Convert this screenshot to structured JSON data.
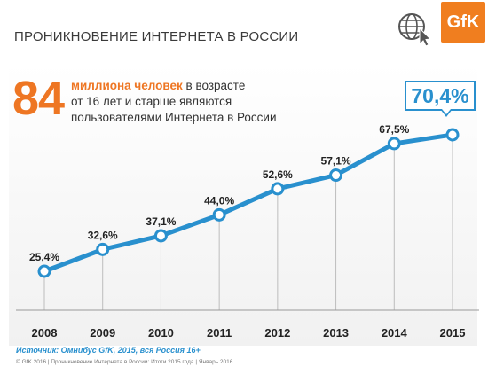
{
  "header": {
    "title": "ПРОНИКНОВЕНИЕ ИНТЕРНЕТА В РОССИИ",
    "brand": "GfK"
  },
  "headline": {
    "number": "84",
    "accent_text": "миллиона человек",
    "rest_text_1": " в возрасте",
    "line_2": "от 16 лет и старше являются",
    "line_3": "пользователями Интернета в России"
  },
  "callout": {
    "value": "70,4%"
  },
  "chart_data": {
    "type": "line",
    "x": [
      "2008",
      "2009",
      "2010",
      "2011",
      "2012",
      "2013",
      "2014",
      "2015"
    ],
    "values": [
      25.4,
      32.6,
      37.1,
      44.0,
      52.6,
      57.1,
      67.5,
      70.4
    ],
    "data_labels": [
      "25,4%",
      "32,6%",
      "37,1%",
      "44,0%",
      "52,6%",
      "57,1%",
      "67,5%",
      ""
    ],
    "ylim": [
      20,
      75
    ],
    "grid": false,
    "line_color": "#2990ce"
  },
  "source": "Источник: Омнибус GfK, 2015, вся Россия 16+",
  "footer": "© GfK 2016 | Проникновение Интернета в России: Итоги 2015 года | Январь 2016"
}
